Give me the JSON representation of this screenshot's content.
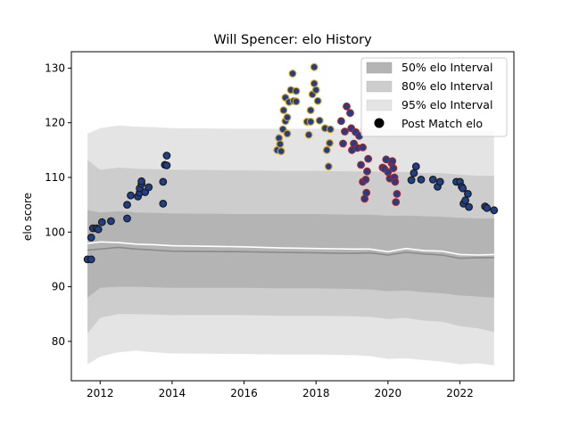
{
  "chart_data": {
    "type": "scatter",
    "title": "Will Spencer: elo History",
    "xlabel": "",
    "ylabel": "elo score",
    "xlim": [
      2011.2,
      2023.5
    ],
    "ylim": [
      72.8,
      133.0
    ],
    "x_ticks": [
      2012,
      2014,
      2016,
      2018,
      2020,
      2022
    ],
    "y_ticks": [
      80,
      90,
      100,
      110,
      120,
      130
    ],
    "grid": false,
    "legend_placement": "top-right",
    "legend": {
      "band50": "50% elo Interval",
      "band80": "80% elo Interval",
      "band95": "95% elo Interval",
      "points": "Post Match elo"
    },
    "colors": {
      "band50": "#b4b4b4",
      "band80": "#cdcdcd",
      "band95": "#e4e4e4",
      "median_line": "#8a8a8a",
      "mean_line": "#ffffff",
      "point_fill": "#1f3f8a",
      "point_edge_default": "#1a1a1a",
      "point_edge_gold": "#d4a017",
      "point_edge_red": "#b22222"
    },
    "interval_x": [
      2011.65,
      2012.0,
      2012.5,
      2013.0,
      2013.5,
      2014.0,
      2016.0,
      2017.0,
      2018.0,
      2019.0,
      2019.5,
      2020.0,
      2020.5,
      2021.0,
      2021.5,
      2022.0,
      2022.5,
      2022.95
    ],
    "band95_low": [
      75.8,
      77.2,
      78.0,
      78.3,
      78.0,
      77.8,
      77.7,
      77.6,
      77.6,
      77.5,
      77.3,
      76.8,
      76.9,
      76.6,
      76.3,
      75.8,
      76.0,
      75.6
    ],
    "band95_high": [
      118.0,
      119.0,
      119.5,
      119.3,
      119.2,
      119.0,
      118.9,
      118.9,
      118.9,
      118.9,
      118.8,
      118.8,
      118.7,
      118.6,
      118.6,
      118.5,
      118.5,
      118.5
    ],
    "band80_low": [
      81.5,
      84.3,
      85.0,
      85.0,
      84.9,
      84.8,
      84.8,
      84.7,
      84.7,
      84.6,
      84.5,
      84.1,
      84.3,
      83.8,
      83.6,
      82.8,
      82.4,
      81.7
    ],
    "band80_high": [
      113.2,
      111.4,
      111.8,
      111.6,
      111.5,
      111.4,
      111.3,
      111.2,
      111.2,
      111.1,
      111.1,
      111.0,
      111.0,
      110.8,
      110.8,
      110.5,
      110.3,
      110.3
    ],
    "band50_low": [
      88.0,
      89.8,
      90.0,
      90.0,
      89.9,
      89.8,
      89.8,
      89.7,
      89.7,
      89.6,
      89.5,
      89.2,
      89.3,
      89.0,
      88.8,
      88.4,
      88.2,
      88.0
    ],
    "band50_high": [
      104.0,
      103.6,
      103.8,
      103.6,
      103.5,
      103.4,
      103.3,
      103.3,
      103.3,
      103.2,
      103.2,
      103.0,
      103.0,
      102.9,
      102.8,
      102.6,
      102.5,
      102.5
    ],
    "median_y": [
      96.7,
      96.9,
      97.2,
      96.9,
      96.7,
      96.5,
      96.4,
      96.3,
      96.2,
      96.1,
      96.2,
      95.8,
      96.3,
      96.0,
      95.8,
      95.2,
      95.3,
      95.3
    ],
    "mean_y": [
      97.9,
      98.2,
      98.1,
      97.8,
      97.7,
      97.5,
      97.3,
      97.1,
      97.0,
      96.9,
      96.9,
      96.4,
      97.0,
      96.6,
      96.5,
      95.9,
      95.8,
      95.9
    ],
    "points": [
      {
        "x": 2011.65,
        "y": 95.0,
        "e": "d"
      },
      {
        "x": 2011.75,
        "y": 95.0,
        "e": "d"
      },
      {
        "x": 2011.75,
        "y": 99.0,
        "e": "d"
      },
      {
        "x": 2011.8,
        "y": 100.7,
        "e": "d"
      },
      {
        "x": 2011.9,
        "y": 100.7,
        "e": "d"
      },
      {
        "x": 2011.95,
        "y": 100.5,
        "e": "d"
      },
      {
        "x": 2012.05,
        "y": 101.8,
        "e": "d"
      },
      {
        "x": 2012.3,
        "y": 102.0,
        "e": "d"
      },
      {
        "x": 2012.75,
        "y": 102.5,
        "e": "d"
      },
      {
        "x": 2012.75,
        "y": 105.0,
        "e": "d"
      },
      {
        "x": 2012.85,
        "y": 106.7,
        "e": "d"
      },
      {
        "x": 2013.05,
        "y": 106.5,
        "e": "d"
      },
      {
        "x": 2013.1,
        "y": 107.2,
        "e": "d"
      },
      {
        "x": 2013.1,
        "y": 108.0,
        "e": "d"
      },
      {
        "x": 2013.15,
        "y": 108.8,
        "e": "d"
      },
      {
        "x": 2013.15,
        "y": 109.3,
        "e": "d"
      },
      {
        "x": 2013.25,
        "y": 107.3,
        "e": "d"
      },
      {
        "x": 2013.35,
        "y": 108.2,
        "e": "d"
      },
      {
        "x": 2013.75,
        "y": 105.2,
        "e": "d"
      },
      {
        "x": 2013.75,
        "y": 109.2,
        "e": "d"
      },
      {
        "x": 2013.8,
        "y": 112.3,
        "e": "d"
      },
      {
        "x": 2013.85,
        "y": 112.2,
        "e": "d"
      },
      {
        "x": 2013.85,
        "y": 114.0,
        "e": "d"
      },
      {
        "x": 2016.92,
        "y": 115.0,
        "e": "g"
      },
      {
        "x": 2016.97,
        "y": 117.2,
        "e": "g"
      },
      {
        "x": 2017.0,
        "y": 116.1,
        "e": "g"
      },
      {
        "x": 2017.03,
        "y": 114.8,
        "e": "g"
      },
      {
        "x": 2017.08,
        "y": 118.8,
        "e": "g"
      },
      {
        "x": 2017.1,
        "y": 122.3,
        "e": "g"
      },
      {
        "x": 2017.15,
        "y": 120.3,
        "e": "g"
      },
      {
        "x": 2017.15,
        "y": 124.6,
        "e": "g"
      },
      {
        "x": 2017.2,
        "y": 121.0,
        "e": "g"
      },
      {
        "x": 2017.2,
        "y": 118.0,
        "e": "g"
      },
      {
        "x": 2017.25,
        "y": 123.8,
        "e": "g"
      },
      {
        "x": 2017.3,
        "y": 126.0,
        "e": "g"
      },
      {
        "x": 2017.35,
        "y": 129.0,
        "e": "g"
      },
      {
        "x": 2017.38,
        "y": 124.0,
        "e": "g"
      },
      {
        "x": 2017.45,
        "y": 125.8,
        "e": "g"
      },
      {
        "x": 2017.45,
        "y": 123.9,
        "e": "g"
      },
      {
        "x": 2017.75,
        "y": 120.2,
        "e": "g"
      },
      {
        "x": 2017.8,
        "y": 117.8,
        "e": "g"
      },
      {
        "x": 2017.85,
        "y": 120.2,
        "e": "g"
      },
      {
        "x": 2017.85,
        "y": 122.3,
        "e": "g"
      },
      {
        "x": 2017.9,
        "y": 125.2,
        "e": "g"
      },
      {
        "x": 2017.95,
        "y": 127.2,
        "e": "g"
      },
      {
        "x": 2017.95,
        "y": 130.2,
        "e": "g"
      },
      {
        "x": 2018.0,
        "y": 126.0,
        "e": "g"
      },
      {
        "x": 2018.05,
        "y": 124.0,
        "e": "g"
      },
      {
        "x": 2018.1,
        "y": 120.4,
        "e": "g"
      },
      {
        "x": 2018.25,
        "y": 119.0,
        "e": "g"
      },
      {
        "x": 2018.3,
        "y": 115.0,
        "e": "g"
      },
      {
        "x": 2018.35,
        "y": 112.0,
        "e": "g"
      },
      {
        "x": 2018.38,
        "y": 116.3,
        "e": "g"
      },
      {
        "x": 2018.4,
        "y": 118.8,
        "e": "g"
      },
      {
        "x": 2018.7,
        "y": 120.3,
        "e": "r"
      },
      {
        "x": 2018.75,
        "y": 116.2,
        "e": "r"
      },
      {
        "x": 2018.8,
        "y": 118.4,
        "e": "r"
      },
      {
        "x": 2018.85,
        "y": 123.0,
        "e": "r"
      },
      {
        "x": 2018.95,
        "y": 121.8,
        "e": "r"
      },
      {
        "x": 2018.98,
        "y": 119.0,
        "e": "r"
      },
      {
        "x": 2019.0,
        "y": 115.0,
        "e": "r"
      },
      {
        "x": 2019.05,
        "y": 116.2,
        "e": "r"
      },
      {
        "x": 2019.1,
        "y": 118.3,
        "e": "r"
      },
      {
        "x": 2019.15,
        "y": 115.4,
        "e": "r"
      },
      {
        "x": 2019.2,
        "y": 117.6,
        "e": "r"
      },
      {
        "x": 2019.25,
        "y": 112.3,
        "e": "r"
      },
      {
        "x": 2019.3,
        "y": 109.2,
        "e": "r"
      },
      {
        "x": 2019.3,
        "y": 115.5,
        "e": "r"
      },
      {
        "x": 2019.35,
        "y": 106.1,
        "e": "r"
      },
      {
        "x": 2019.38,
        "y": 109.6,
        "e": "r"
      },
      {
        "x": 2019.4,
        "y": 107.2,
        "e": "r"
      },
      {
        "x": 2019.42,
        "y": 111.1,
        "e": "r"
      },
      {
        "x": 2019.45,
        "y": 113.4,
        "e": "r"
      },
      {
        "x": 2019.85,
        "y": 111.8,
        "e": "r"
      },
      {
        "x": 2019.9,
        "y": 111.6,
        "e": "r"
      },
      {
        "x": 2019.95,
        "y": 113.3,
        "e": "r"
      },
      {
        "x": 2020.0,
        "y": 111.0,
        "e": "r"
      },
      {
        "x": 2020.05,
        "y": 109.8,
        "e": "r"
      },
      {
        "x": 2020.1,
        "y": 112.6,
        "e": "r"
      },
      {
        "x": 2020.12,
        "y": 113.0,
        "e": "r"
      },
      {
        "x": 2020.15,
        "y": 111.7,
        "e": "r"
      },
      {
        "x": 2020.18,
        "y": 110.0,
        "e": "r"
      },
      {
        "x": 2020.2,
        "y": 109.2,
        "e": "r"
      },
      {
        "x": 2020.22,
        "y": 105.5,
        "e": "r"
      },
      {
        "x": 2020.25,
        "y": 107.0,
        "e": "r"
      },
      {
        "x": 2020.65,
        "y": 109.5,
        "e": "d"
      },
      {
        "x": 2020.72,
        "y": 110.8,
        "e": "d"
      },
      {
        "x": 2020.78,
        "y": 112.0,
        "e": "d"
      },
      {
        "x": 2020.92,
        "y": 109.6,
        "e": "d"
      },
      {
        "x": 2021.25,
        "y": 109.6,
        "e": "d"
      },
      {
        "x": 2021.38,
        "y": 108.3,
        "e": "d"
      },
      {
        "x": 2021.45,
        "y": 109.2,
        "e": "d"
      },
      {
        "x": 2021.9,
        "y": 109.2,
        "e": "d"
      },
      {
        "x": 2022.0,
        "y": 109.2,
        "e": "d"
      },
      {
        "x": 2022.05,
        "y": 108.3,
        "e": "d"
      },
      {
        "x": 2022.08,
        "y": 108.0,
        "e": "d"
      },
      {
        "x": 2022.1,
        "y": 105.2,
        "e": "d"
      },
      {
        "x": 2022.15,
        "y": 105.8,
        "e": "d"
      },
      {
        "x": 2022.22,
        "y": 107.0,
        "e": "d"
      },
      {
        "x": 2022.25,
        "y": 104.6,
        "e": "d"
      },
      {
        "x": 2022.7,
        "y": 104.7,
        "e": "d"
      },
      {
        "x": 2022.75,
        "y": 104.4,
        "e": "d"
      },
      {
        "x": 2022.95,
        "y": 104.0,
        "e": "d"
      }
    ]
  }
}
